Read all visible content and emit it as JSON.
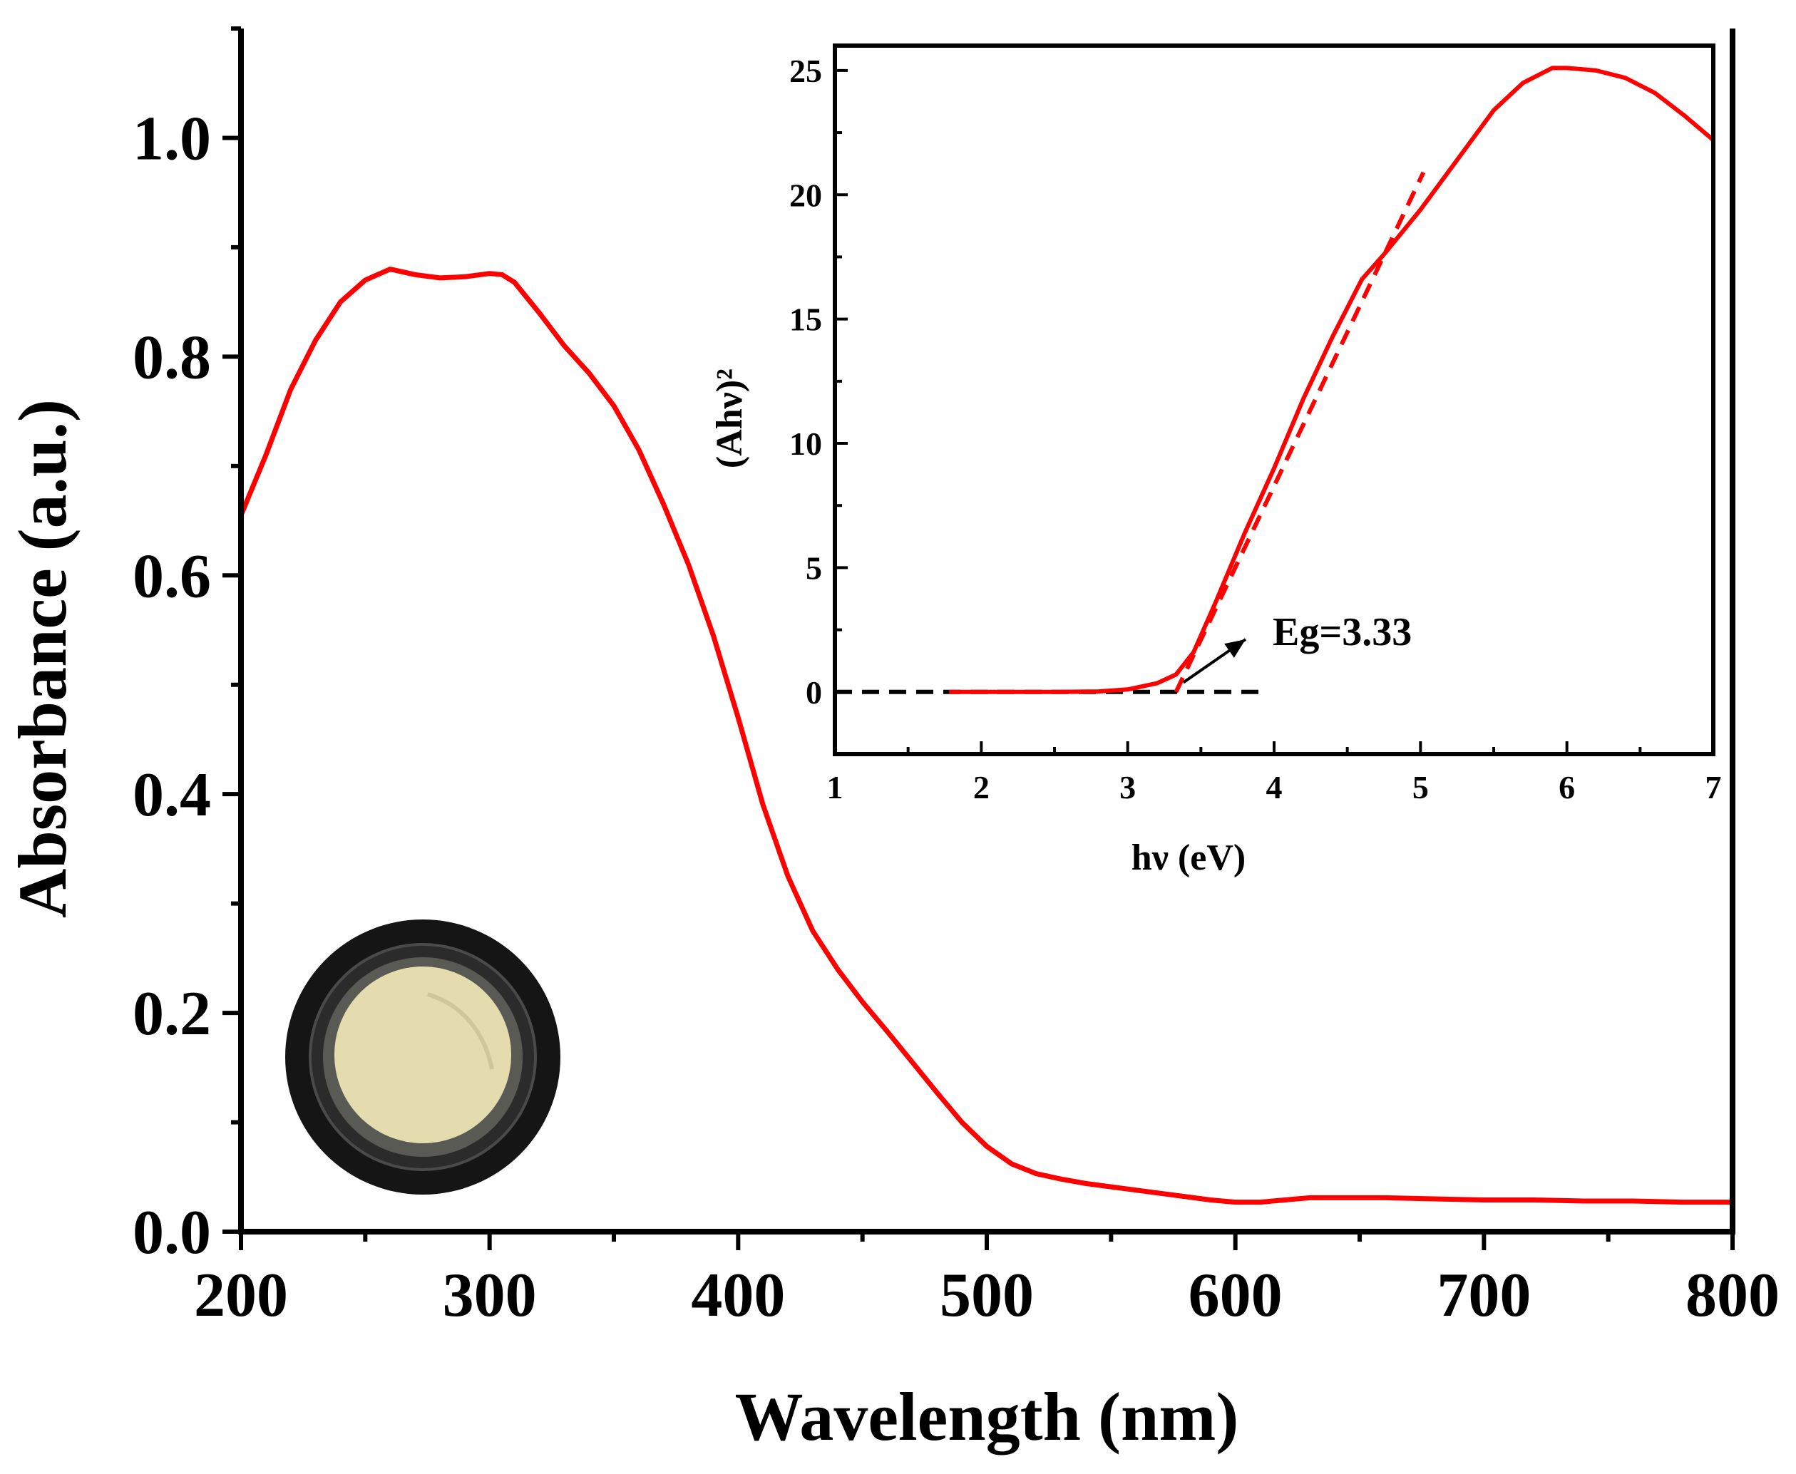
{
  "chart_data": [
    {
      "type": "line",
      "id": "main",
      "title": "",
      "xlabel": "Wavelength (nm)",
      "ylabel": "Absorbance (a.u.)",
      "xlim": [
        200,
        800
      ],
      "ylim": [
        0.0,
        1.1
      ],
      "xticks": [
        200,
        300,
        400,
        500,
        600,
        700,
        800
      ],
      "xtick_labels": [
        "200",
        "300",
        "400",
        "500",
        "600",
        "700",
        "800"
      ],
      "yticks": [
        0.0,
        0.2,
        0.4,
        0.6,
        0.8,
        1.0
      ],
      "ytick_labels": [
        "0.0",
        "0.2",
        "0.4",
        "0.6",
        "0.8",
        "1.0"
      ],
      "series": [
        {
          "name": "absorbance",
          "color": "#ff0000",
          "x": [
            200,
            210,
            220,
            230,
            240,
            250,
            260,
            270,
            280,
            290,
            300,
            305,
            310,
            320,
            330,
            340,
            350,
            360,
            370,
            380,
            390,
            400,
            410,
            420,
            430,
            440,
            450,
            460,
            470,
            480,
            490,
            500,
            510,
            520,
            530,
            540,
            550,
            560,
            570,
            580,
            590,
            600,
            610,
            620,
            630,
            640,
            650,
            660,
            680,
            700,
            720,
            740,
            760,
            780,
            800
          ],
          "y": [
            0.655,
            0.71,
            0.77,
            0.815,
            0.85,
            0.87,
            0.88,
            0.875,
            0.872,
            0.873,
            0.876,
            0.875,
            0.868,
            0.84,
            0.81,
            0.785,
            0.755,
            0.715,
            0.665,
            0.61,
            0.545,
            0.47,
            0.39,
            0.325,
            0.275,
            0.24,
            0.21,
            0.183,
            0.155,
            0.127,
            0.1,
            0.078,
            0.062,
            0.053,
            0.048,
            0.044,
            0.041,
            0.038,
            0.035,
            0.032,
            0.029,
            0.027,
            0.027,
            0.029,
            0.031,
            0.031,
            0.031,
            0.031,
            0.03,
            0.029,
            0.029,
            0.028,
            0.028,
            0.027,
            0.027
          ]
        }
      ]
    },
    {
      "type": "line",
      "id": "inset",
      "title": "",
      "xlabel": "hν (eV)",
      "ylabel": "(Ahν)²",
      "xlim": [
        1,
        7
      ],
      "ylim": [
        -2.5,
        26
      ],
      "xticks": [
        1,
        2,
        3,
        4,
        5,
        6,
        7
      ],
      "xtick_labels": [
        "1",
        "2",
        "3",
        "4",
        "5",
        "6",
        "7"
      ],
      "yticks": [
        0,
        5,
        10,
        15,
        20,
        25
      ],
      "ytick_labels": [
        "0",
        "5",
        "10",
        "15",
        "20",
        "25"
      ],
      "series": [
        {
          "name": "tauc",
          "color": "#ff0000",
          "x": [
            1.78,
            2.0,
            2.5,
            2.8,
            3.0,
            3.2,
            3.33,
            3.45,
            3.6,
            3.8,
            4.0,
            4.2,
            4.4,
            4.6,
            4.75,
            5.0,
            5.25,
            5.5,
            5.7,
            5.9,
            6.0,
            6.2,
            6.4,
            6.6,
            6.8,
            7.0
          ],
          "y": [
            0.0,
            0.0,
            0.0,
            0.02,
            0.1,
            0.35,
            0.7,
            1.6,
            3.6,
            6.4,
            9.0,
            11.8,
            14.3,
            16.6,
            17.6,
            19.4,
            21.4,
            23.4,
            24.5,
            25.1,
            25.1,
            25.0,
            24.7,
            24.1,
            23.2,
            22.2
          ]
        },
        {
          "name": "tangent",
          "color": "#ff0000",
          "dashed": true,
          "x": [
            3.33,
            5.02
          ],
          "y": [
            0.0,
            20.9
          ]
        },
        {
          "name": "baseline",
          "color": "#000000",
          "dashed": true,
          "x": [
            1.0,
            3.92
          ],
          "y": [
            0.0,
            0.0
          ]
        }
      ],
      "annotations": [
        {
          "text": "Eg=3.33",
          "points_to": [
            3.38,
            0.15
          ]
        }
      ]
    }
  ]
}
